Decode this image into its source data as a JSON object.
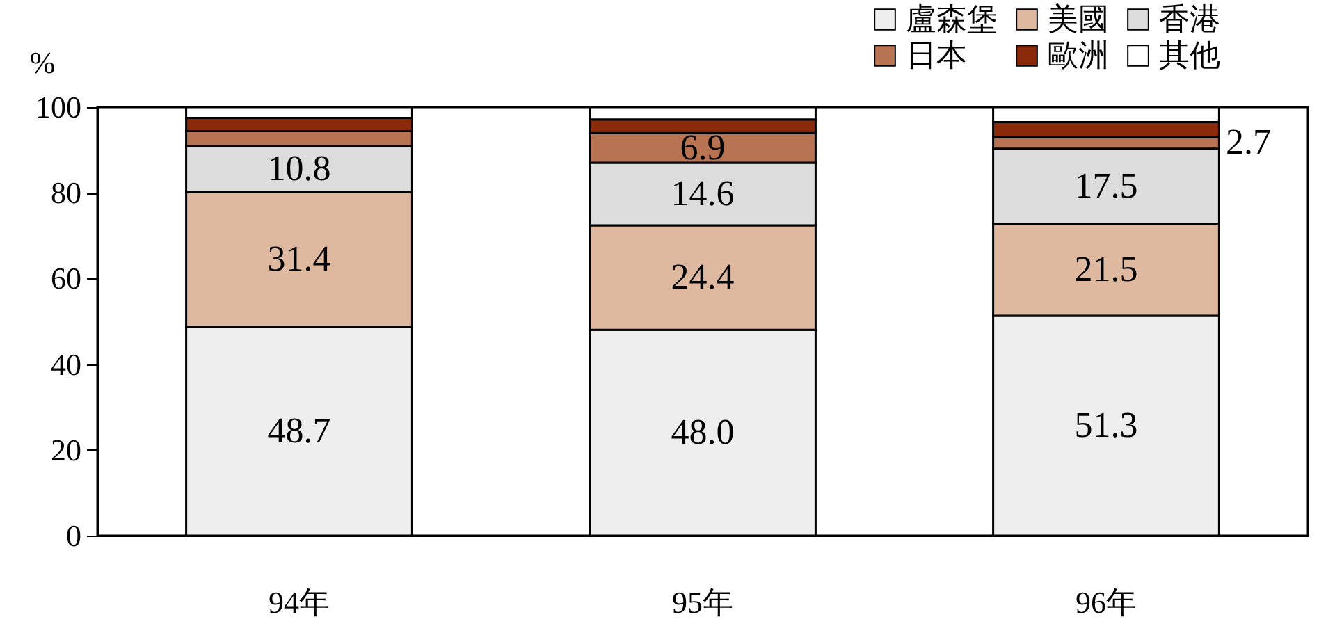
{
  "chart_data": {
    "type": "bar",
    "stacked": true,
    "ylabel": "%",
    "categories": [
      "94年",
      "95年",
      "96年"
    ],
    "series": [
      {
        "name": "盧森堡",
        "color": "#eeeeee",
        "values": [
          48.7,
          48.0,
          51.3
        ],
        "value_labels": [
          "48.7",
          "48.0",
          "51.3"
        ]
      },
      {
        "name": "美國",
        "color": "#dfb8a0",
        "values": [
          31.4,
          24.4,
          21.5
        ],
        "value_labels": [
          "31.4",
          "24.4",
          "21.5"
        ]
      },
      {
        "name": "香港",
        "color": "#dcdcdc",
        "values": [
          10.8,
          14.6,
          17.5
        ],
        "value_labels": [
          "10.8",
          "14.6",
          "17.5"
        ]
      },
      {
        "name": "日本",
        "color": "#b87353",
        "values": [
          3.5,
          6.9,
          2.7
        ],
        "value_labels": [
          null,
          "6.9",
          "2.7"
        ]
      },
      {
        "name": "歐洲",
        "color": "#8b2a0a",
        "values": [
          3.1,
          3.2,
          3.5
        ],
        "value_labels": [
          null,
          null,
          null
        ]
      },
      {
        "name": "其他",
        "color": "#ffffff",
        "values": [
          2.5,
          2.9,
          3.5
        ],
        "value_labels": [
          null,
          null,
          null
        ]
      }
    ],
    "ylim": [
      0,
      100
    ],
    "yticks": [
      0,
      20,
      40,
      60,
      80,
      100
    ],
    "grid": false,
    "legend": "top right"
  }
}
